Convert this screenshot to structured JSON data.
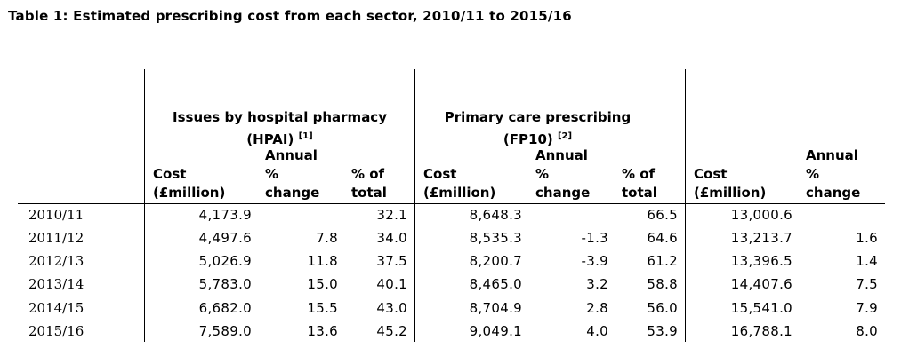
{
  "title": "Table 1: Estimated prescribing cost from each sector, 2010/11 to 2015/16",
  "groups": {
    "hpai": {
      "line1": "Issues by hospital pharmacy",
      "line2": "(HPAI)",
      "note": "[1]"
    },
    "fp10": {
      "line1": "Primary care prescribing",
      "line2": "(FP10)",
      "note": "[2]"
    }
  },
  "col_headers": {
    "cost_1": "Cost",
    "cost_2": "(£million)",
    "annual_1": "Annual",
    "annual_2": "%",
    "annual_3": "change",
    "pct_1": "% of",
    "pct_2": "total"
  },
  "rows": [
    {
      "year": "2010/11",
      "hpai_cost": "4,173.9",
      "hpai_change": "",
      "hpai_pct": "32.1",
      "fp10_cost": "8,648.3",
      "fp10_change": "",
      "fp10_pct": "66.5",
      "total_cost": "13,000.6",
      "total_change": ""
    },
    {
      "year": "2011/12",
      "hpai_cost": "4,497.6",
      "hpai_change": "7.8",
      "hpai_pct": "34.0",
      "fp10_cost": "8,535.3",
      "fp10_change": "-1.3",
      "fp10_pct": "64.6",
      "total_cost": "13,213.7",
      "total_change": "1.6"
    },
    {
      "year": "2012/13",
      "hpai_cost": "5,026.9",
      "hpai_change": "11.8",
      "hpai_pct": "37.5",
      "fp10_cost": "8,200.7",
      "fp10_change": "-3.9",
      "fp10_pct": "61.2",
      "total_cost": "13,396.5",
      "total_change": "1.4"
    },
    {
      "year": "2013/14",
      "hpai_cost": "5,783.0",
      "hpai_change": "15.0",
      "hpai_pct": "40.1",
      "fp10_cost": "8,465.0",
      "fp10_change": "3.2",
      "fp10_pct": "58.8",
      "total_cost": "14,407.6",
      "total_change": "7.5"
    },
    {
      "year": "2014/15",
      "hpai_cost": "6,682.0",
      "hpai_change": "15.5",
      "hpai_pct": "43.0",
      "fp10_cost": "8,704.9",
      "fp10_change": "2.8",
      "fp10_pct": "56.0",
      "total_cost": "15,541.0",
      "total_change": "7.9"
    },
    {
      "year": "2015/16",
      "hpai_cost": "7,589.0",
      "hpai_change": "13.6",
      "hpai_pct": "45.2",
      "fp10_cost": "9,049.1",
      "fp10_change": "4.0",
      "fp10_pct": "53.9",
      "total_cost": "16,788.1",
      "total_change": "8.0"
    }
  ]
}
